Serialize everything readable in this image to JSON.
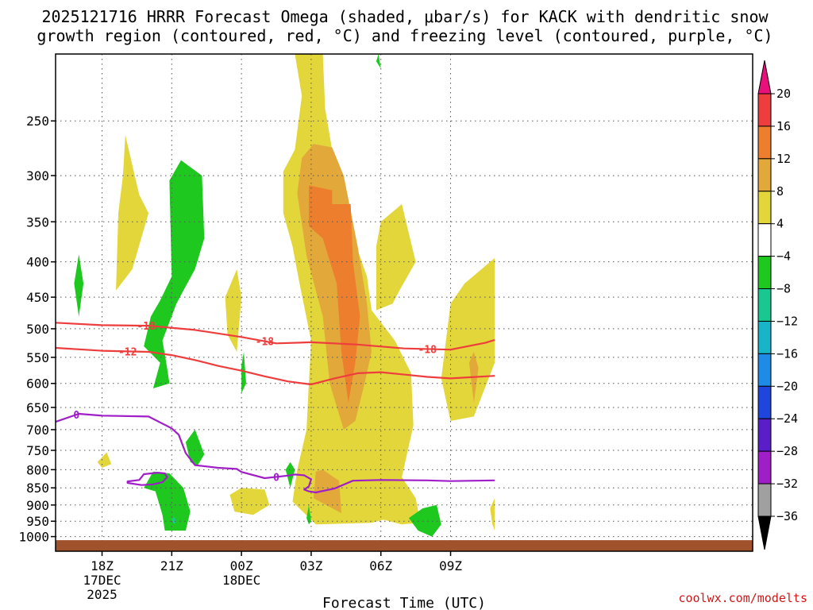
{
  "header": {
    "title_line1": "2025121716 HRRR Forecast Omega (shaded, μbar/s) for KACK with dendritic snow",
    "title_line2": "growth region (contoured, red, °C) and freezing level (contoured, purple, °C)"
  },
  "credit": "coolwx.com/modelts",
  "chart_data": {
    "type": "heatmap",
    "model": "HRRR",
    "init": "2025121716",
    "station": "KACK",
    "xlabel": "Forecast Time (UTC)",
    "x_range_hours_utc": [
      16,
      46
    ],
    "x_ticks": [
      {
        "hour": 18,
        "label": "18Z",
        "sub1": "17DEC",
        "sub2": "2025"
      },
      {
        "hour": 21,
        "label": "21Z",
        "sub1": "",
        "sub2": ""
      },
      {
        "hour": 24,
        "label": "00Z",
        "sub1": "18DEC",
        "sub2": ""
      },
      {
        "hour": 27,
        "label": "03Z",
        "sub1": "",
        "sub2": ""
      },
      {
        "hour": 30,
        "label": "06Z",
        "sub1": "",
        "sub2": ""
      },
      {
        "hour": 33,
        "label": "09Z",
        "sub1": "",
        "sub2": ""
      }
    ],
    "y_axis": "pressure (hPa), log scale",
    "y_range": [
      1050,
      200
    ],
    "y_ticks": [
      250,
      300,
      350,
      400,
      450,
      500,
      550,
      600,
      650,
      700,
      750,
      800,
      850,
      900,
      950,
      1000
    ],
    "grid": true,
    "colorbar": {
      "levels": [
        20,
        16,
        12,
        8,
        4,
        -4,
        -8,
        -12,
        -16,
        -20,
        -24,
        -28,
        -32,
        -36
      ],
      "colors": [
        "#e8107a",
        "#ee3d3d",
        "#ed7e2d",
        "#e3a83a",
        "#e3d63a",
        "#ffffff",
        "#1ec81e",
        "#18c890",
        "#18b4c8",
        "#1e8ce6",
        "#1e46dc",
        "#5a1ec8",
        "#a01ec8",
        "#a0a0a0",
        "#000000"
      ]
    },
    "colors": {
      "ground": "#a0522d",
      "dgz": "#ee3d3d",
      "freezing": "#a01ec8"
    },
    "red_contours": [
      {
        "label": "-18",
        "label_hours": [
          19.9,
          25.0,
          32.0
        ],
        "points": [
          [
            16,
            490
          ],
          [
            18,
            494
          ],
          [
            20,
            495
          ],
          [
            22,
            502
          ],
          [
            24,
            514
          ],
          [
            25.5,
            525
          ],
          [
            27,
            523
          ],
          [
            29,
            527
          ],
          [
            31,
            534
          ],
          [
            33,
            536
          ],
          [
            34.5,
            524
          ],
          [
            34.9,
            519
          ]
        ]
      },
      {
        "label": "-12",
        "label_hours": [
          19.1
        ],
        "points": [
          [
            16,
            533
          ],
          [
            18,
            538
          ],
          [
            20,
            540
          ],
          [
            21,
            546
          ],
          [
            22,
            555
          ],
          [
            23,
            566
          ],
          [
            24,
            575
          ],
          [
            25,
            586
          ],
          [
            26,
            596
          ],
          [
            27,
            602
          ],
          [
            28,
            590
          ],
          [
            29,
            580
          ],
          [
            30,
            578
          ],
          [
            32,
            587
          ],
          [
            33,
            590
          ],
          [
            34.9,
            585
          ]
        ]
      }
    ],
    "purple_contours": [
      {
        "label": "0",
        "label_hours": [
          16.9,
          25.5
        ],
        "points": [
          [
            16,
            682
          ],
          [
            17,
            664
          ],
          [
            18,
            668
          ],
          [
            20,
            670
          ],
          [
            21,
            697
          ],
          [
            21.3,
            712
          ],
          [
            21.6,
            757
          ],
          [
            22,
            788
          ],
          [
            23,
            795
          ],
          [
            23.8,
            798
          ],
          [
            24,
            806
          ],
          [
            25,
            823
          ],
          [
            26,
            816
          ],
          [
            26.3,
            813
          ],
          [
            26.7,
            815
          ],
          [
            27,
            826
          ],
          [
            26.9,
            846
          ],
          [
            26.7,
            855
          ],
          [
            26.9,
            860
          ],
          [
            27.2,
            863
          ],
          [
            28,
            852
          ],
          [
            28.8,
            830
          ],
          [
            30,
            828
          ],
          [
            32,
            829
          ],
          [
            33,
            831
          ],
          [
            34.9,
            829
          ]
        ]
      },
      {
        "label": "0",
        "label_hours": [],
        "points": [
          [
            19.1,
            832
          ],
          [
            19.6,
            828
          ],
          [
            19.8,
            812
          ],
          [
            20.4,
            808
          ],
          [
            20.7,
            810
          ],
          [
            20.8,
            820
          ],
          [
            20.6,
            834
          ],
          [
            20.2,
            840
          ],
          [
            19.7,
            842
          ],
          [
            19.1,
            836
          ]
        ]
      }
    ],
    "omega_regions": [
      {
        "band": "4 to 8",
        "color": "#e3d63a",
        "points": [
          [
            26.3,
            275
          ],
          [
            25.8,
            296
          ],
          [
            25.8,
            340
          ],
          [
            26.2,
            380
          ],
          [
            26.5,
            430
          ],
          [
            27,
            520
          ],
          [
            26.9,
            600
          ],
          [
            26.8,
            700
          ],
          [
            26.4,
            800
          ],
          [
            26.2,
            890
          ],
          [
            27.2,
            960
          ],
          [
            29.6,
            955
          ],
          [
            30.1,
            945
          ],
          [
            30.9,
            960
          ],
          [
            31.7,
            955
          ],
          [
            31.5,
            880
          ],
          [
            30.9,
            820
          ],
          [
            31.4,
            690
          ],
          [
            31.3,
            580
          ],
          [
            30.6,
            520
          ],
          [
            29.6,
            470
          ],
          [
            29.4,
            420
          ],
          [
            28.3,
            330
          ],
          [
            27.6,
            240
          ],
          [
            27.5,
            200
          ],
          [
            26.3,
            200
          ],
          [
            26.6,
            230
          ]
        ]
      },
      {
        "band": "8 to 12",
        "color": "#e3a83a",
        "points": [
          [
            26.6,
            283
          ],
          [
            26.4,
            318
          ],
          [
            26.8,
            392
          ],
          [
            27.5,
            480
          ],
          [
            27.8,
            600
          ],
          [
            28.4,
            700
          ],
          [
            28.9,
            680
          ],
          [
            29.3,
            600
          ],
          [
            29.6,
            540
          ],
          [
            29.4,
            460
          ],
          [
            29.0,
            380
          ],
          [
            28.4,
            300
          ],
          [
            27.9,
            273
          ],
          [
            27.1,
            270
          ]
        ]
      },
      {
        "band": "8 to 12",
        "color": "#e3a83a",
        "points": [
          [
            27.2,
            805
          ],
          [
            27.1,
            880
          ],
          [
            28.3,
            925
          ],
          [
            28.2,
            830
          ],
          [
            27.5,
            800
          ]
        ]
      },
      {
        "band": "12 to 16",
        "color": "#ed7e2d",
        "points": [
          [
            26.9,
            310
          ],
          [
            26.9,
            355
          ],
          [
            27.5,
            370
          ],
          [
            28.1,
            430
          ],
          [
            28.3,
            540
          ],
          [
            28.6,
            640
          ],
          [
            28.9,
            560
          ],
          [
            29.1,
            480
          ],
          [
            28.8,
            400
          ],
          [
            28.7,
            330
          ],
          [
            27.9,
            330
          ],
          [
            27.9,
            315
          ]
        ]
      },
      {
        "band": "4 to 8",
        "color": "#e3d63a",
        "points": [
          [
            18.7,
            340
          ],
          [
            18.9,
            300
          ],
          [
            19.0,
            262
          ],
          [
            19.6,
            320
          ],
          [
            20.0,
            340
          ],
          [
            19.3,
            410
          ],
          [
            18.6,
            440
          ]
        ]
      },
      {
        "band": "4 to 8",
        "color": "#e3d63a",
        "points": [
          [
            23.3,
            450
          ],
          [
            23.8,
            410
          ],
          [
            24.0,
            450
          ],
          [
            23.8,
            540
          ],
          [
            23.4,
            510
          ]
        ]
      },
      {
        "band": "4 to 8",
        "color": "#e3d63a",
        "points": [
          [
            17.8,
            780
          ],
          [
            18.2,
            755
          ],
          [
            18.4,
            785
          ],
          [
            18.0,
            795
          ]
        ]
      },
      {
        "band": "4 to 8",
        "color": "#e3d63a",
        "points": [
          [
            23.5,
            870
          ],
          [
            24.0,
            850
          ],
          [
            25.0,
            855
          ],
          [
            25.2,
            900
          ],
          [
            24.5,
            930
          ],
          [
            23.7,
            920
          ]
        ]
      },
      {
        "band": "4 to 8",
        "color": "#e3d63a",
        "points": [
          [
            29.8,
            380
          ],
          [
            30.0,
            350
          ],
          [
            30.9,
            330
          ],
          [
            31.5,
            400
          ],
          [
            30.8,
            440
          ],
          [
            30.5,
            460
          ],
          [
            29.8,
            470
          ]
        ]
      },
      {
        "band": "4 to 8",
        "color": "#e3d63a",
        "points": [
          [
            33.0,
            460
          ],
          [
            33.6,
            430
          ],
          [
            34.9,
            395
          ],
          [
            34.9,
            560
          ],
          [
            34.0,
            670
          ],
          [
            33.0,
            680
          ],
          [
            32.6,
            590
          ]
        ]
      },
      {
        "band": "8 to 12",
        "color": "#e3a83a",
        "points": [
          [
            33.8,
            560
          ],
          [
            34.0,
            540
          ],
          [
            34.2,
            570
          ],
          [
            34.0,
            640
          ]
        ]
      },
      {
        "band": "4 to 8",
        "color": "#e3d63a",
        "points": [
          [
            34.8,
            960
          ],
          [
            34.7,
            910
          ],
          [
            34.9,
            880
          ],
          [
            34.9,
            980
          ]
        ]
      },
      {
        "band": "-8 to -4",
        "color": "#1ec81e",
        "points": [
          [
            21.0,
            420
          ],
          [
            20.9,
            305
          ],
          [
            21.4,
            285
          ],
          [
            22.3,
            300
          ],
          [
            22.4,
            370
          ],
          [
            22.0,
            410
          ],
          [
            21.5,
            440
          ],
          [
            21.2,
            460
          ],
          [
            20.6,
            520
          ],
          [
            20.8,
            570
          ],
          [
            20.9,
            600
          ],
          [
            20.2,
            610
          ],
          [
            20.5,
            560
          ],
          [
            19.8,
            530
          ],
          [
            20.1,
            480
          ],
          [
            20.5,
            455
          ]
        ]
      },
      {
        "band": "-8 to -4",
        "color": "#1ec81e",
        "points": [
          [
            16.8,
            430
          ],
          [
            17.0,
            390
          ],
          [
            17.2,
            430
          ],
          [
            17.0,
            480
          ]
        ]
      },
      {
        "band": "-8 to -4",
        "color": "#1ec81e",
        "points": [
          [
            24.0,
            565
          ],
          [
            24.1,
            540
          ],
          [
            24.2,
            600
          ],
          [
            24.0,
            620
          ]
        ]
      },
      {
        "band": "-8 to -4",
        "color": "#1ec81e",
        "points": [
          [
            21.6,
            730
          ],
          [
            22.0,
            700
          ],
          [
            22.4,
            760
          ],
          [
            22.1,
            790
          ],
          [
            21.8,
            780
          ]
        ]
      },
      {
        "band": "-8 to -4",
        "color": "#1ec81e",
        "points": [
          [
            19.8,
            850
          ],
          [
            20.2,
            805
          ],
          [
            20.9,
            810
          ],
          [
            21.5,
            850
          ],
          [
            21.8,
            920
          ],
          [
            21.6,
            980
          ],
          [
            20.7,
            980
          ],
          [
            20.6,
            930
          ],
          [
            20.3,
            860
          ]
        ]
      },
      {
        "band": "-8 to -4",
        "color": "#1ec81e",
        "points": [
          [
            25.9,
            800
          ],
          [
            26.1,
            780
          ],
          [
            26.3,
            800
          ],
          [
            26.1,
            850
          ]
        ]
      },
      {
        "band": "-8 to -4",
        "color": "#1ec81e",
        "points": [
          [
            26.8,
            940
          ],
          [
            26.9,
            900
          ],
          [
            27.0,
            950
          ],
          [
            26.9,
            960
          ]
        ]
      },
      {
        "band": "-8 to -4",
        "color": "#1ec81e",
        "points": [
          [
            31.2,
            940
          ],
          [
            31.8,
            910
          ],
          [
            32.4,
            900
          ],
          [
            32.6,
            960
          ],
          [
            32.2,
            1000
          ],
          [
            31.6,
            980
          ]
        ]
      },
      {
        "band": "-8 to -4",
        "color": "#1ec81e",
        "points": [
          [
            29.8,
            205
          ],
          [
            29.9,
            200
          ],
          [
            30.0,
            210
          ]
        ]
      },
      {
        "band": "-12 to -8",
        "color": "#18c890",
        "points": [
          [
            21.0,
            945
          ],
          [
            21.1,
            935
          ],
          [
            21.2,
            950
          ],
          [
            21.1,
            960
          ]
        ]
      }
    ]
  }
}
